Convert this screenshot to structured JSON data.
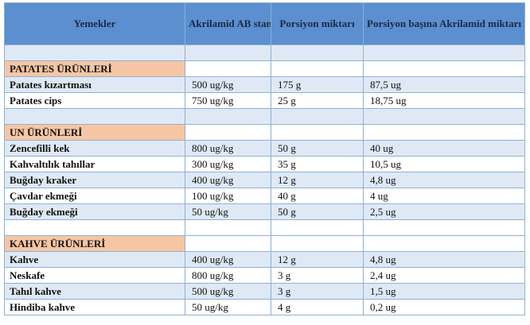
{
  "table": {
    "headers": [
      "Yemekler",
      "Akrilamid AB standardı",
      "Porsiyon miktarı",
      "Porsiyon başına Akrilamid miktarı"
    ],
    "sections": [
      {
        "label": "PATATES ÜRÜNLERİ",
        "rows": [
          [
            "Patates kızartması",
            "500 ug/kg",
            "175 g",
            "87,5 ug"
          ],
          [
            "Patates cips",
            "750 ug/kg",
            "25 g",
            "18,75 ug"
          ]
        ]
      },
      {
        "label": "UN ÜRÜNLERİ",
        "rows": [
          [
            "Zencefilli kek",
            "800 ug/kg",
            "50 g",
            "40 ug"
          ],
          [
            "Kahvaltılık tahıllar",
            "300 ug/kg",
            "35  g",
            "10,5 ug"
          ],
          [
            "Buğday kraker",
            "400 ug/kg",
            "12 g",
            "4,8 ug"
          ],
          [
            "Çavdar ekmeği",
            "100 ug/kg",
            "40 g",
            "4 ug"
          ],
          [
            "Buğday ekmeği",
            "50 ug/kg",
            "50 g",
            "2,5 ug"
          ]
        ]
      },
      {
        "label": "KAHVE ÜRÜNLERİ",
        "rows": [
          [
            "Kahve",
            "400 ug/kg",
            "12 g",
            "4,8 ug"
          ],
          [
            "Neskafe",
            "800 ug/kg",
            "3 g",
            "2,4 ug"
          ],
          [
            "Tahıl kahve",
            "500 ug/kg",
            "3 g",
            "1,5 ug"
          ],
          [
            "Hindiba kahve",
            "50 ug/kg",
            "4 g",
            "0,2 ug"
          ]
        ]
      }
    ]
  }
}
